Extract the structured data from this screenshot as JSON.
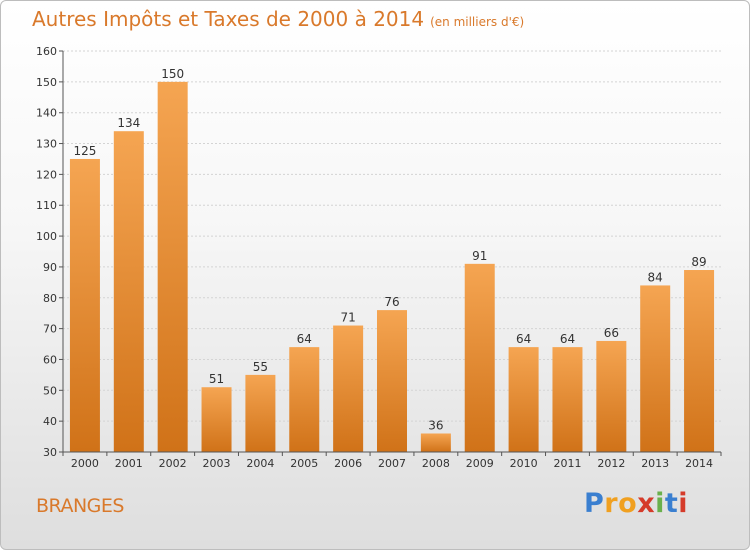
{
  "title": "Autres Impôts et Taxes de 2000 à 2014",
  "subtitle": "(en milliers d'€)",
  "place": "BRANGES",
  "logo": {
    "letters": [
      "P",
      "r",
      "o",
      "x",
      "i",
      "t",
      "i"
    ],
    "colors": [
      "#3a7fd0",
      "#f0a020",
      "#f0a020",
      "#d53b2a",
      "#6ab04c",
      "#3a7fd0",
      "#d53b2a"
    ]
  },
  "colors": {
    "bar_top": "#f5a552",
    "bar_bottom": "#d07218",
    "accent": "#d9792b"
  },
  "chart_data": {
    "type": "bar",
    "categories": [
      "2000",
      "2001",
      "2002",
      "2003",
      "2004",
      "2005",
      "2006",
      "2007",
      "2008",
      "2009",
      "2010",
      "2011",
      "2012",
      "2013",
      "2014"
    ],
    "values": [
      125,
      134,
      150,
      51,
      55,
      64,
      71,
      76,
      36,
      91,
      64,
      64,
      66,
      84,
      89
    ],
    "yticks": [
      30,
      40,
      50,
      60,
      70,
      80,
      90,
      100,
      110,
      120,
      130,
      140,
      150,
      160
    ],
    "ylim": [
      30,
      160
    ],
    "grid": true
  }
}
